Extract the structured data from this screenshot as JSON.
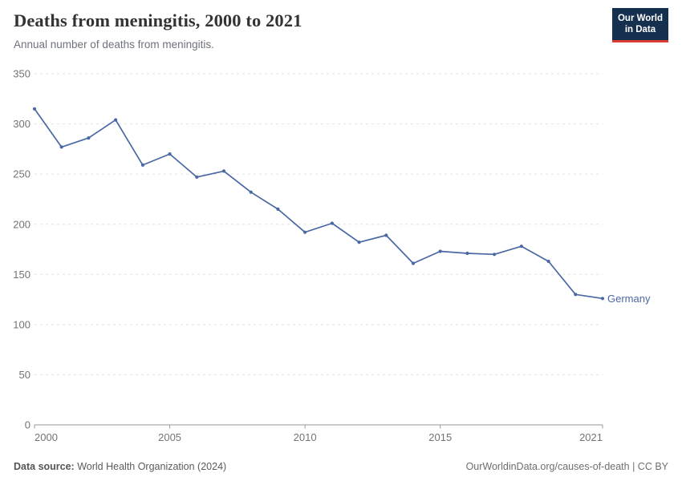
{
  "header": {
    "title": "Deaths from meningitis, 2000 to 2021",
    "subtitle": "Annual number of deaths from meningitis."
  },
  "logo": {
    "line1": "Our World",
    "line2": "in Data",
    "bg_color": "#15304f",
    "accent_color": "#dc3b33"
  },
  "footer": {
    "source_label": "Data source:",
    "source_value": "World Health Organization (2024)",
    "credit": "OurWorldinData.org/causes-of-death | CC BY"
  },
  "chart_data": {
    "type": "line",
    "title": "Deaths from meningitis, 2000 to 2021",
    "xlabel": "",
    "ylabel": "",
    "xlim": [
      2000,
      2021
    ],
    "ylim": [
      0,
      350
    ],
    "grid": "horizontal-dashed",
    "legend_position": "end-of-line-label",
    "x": [
      2000,
      2001,
      2002,
      2003,
      2004,
      2005,
      2006,
      2007,
      2008,
      2009,
      2010,
      2011,
      2012,
      2013,
      2014,
      2015,
      2016,
      2017,
      2018,
      2019,
      2020,
      2021
    ],
    "series": [
      {
        "name": "Germany",
        "color": "#4968a4",
        "values": [
          315,
          277,
          286,
          304,
          259,
          270,
          247,
          253,
          232,
          215,
          192,
          201,
          182,
          189,
          161,
          173,
          171,
          170,
          178,
          163,
          130,
          126
        ]
      }
    ],
    "x_ticks": [
      2000,
      2005,
      2010,
      2015,
      2021
    ],
    "y_ticks": [
      0,
      50,
      100,
      150,
      200,
      250,
      300,
      350
    ],
    "gridline_color": "#e0e0e0",
    "axis_color": "#999999"
  }
}
